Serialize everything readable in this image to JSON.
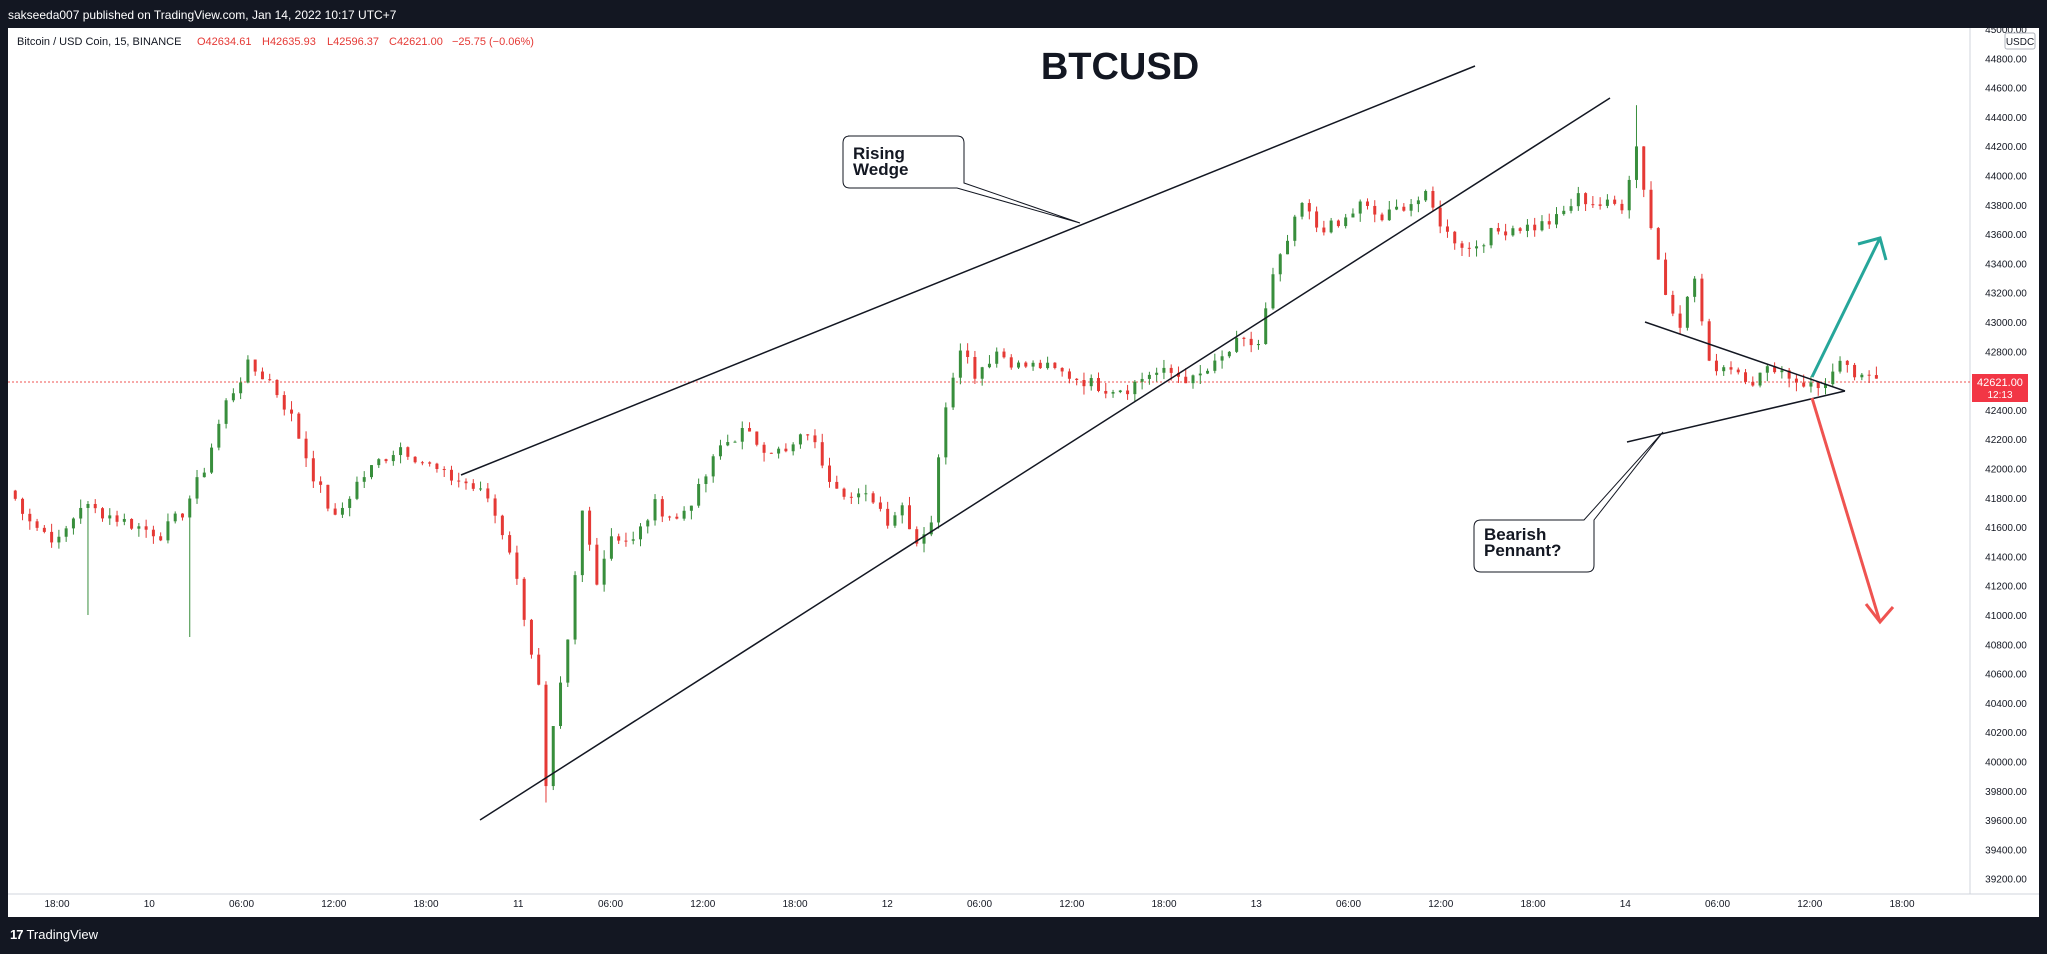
{
  "header": {
    "published_by": "sakseeda007 published on TradingView.com, Jan 14, 2022 10:17 UTC+7"
  },
  "brand": {
    "logo_glyph": "17",
    "name": "TradingView"
  },
  "symbol": {
    "name": "Bitcoin / USD Coin, 15, BINANCE",
    "open": "O42634.61",
    "high": "H42635.93",
    "low": "L42596.37",
    "close": "C42621.00",
    "change": "−25.75 (−0.06%)"
  },
  "price_scale": {
    "currency": "USDC",
    "current_price": "42621.00",
    "countdown": "12:13"
  },
  "colors": {
    "up": "#26a69a",
    "down": "#ef5350",
    "candle_up": "#388e3c",
    "candle_down": "#e53935",
    "arrow_up": "#26a69a",
    "arrow_down": "#ef5350"
  },
  "chart_data": {
    "type": "candlestick",
    "title": "BTCUSD",
    "x_axis": {
      "ticks": [
        "18:00",
        "10",
        "06:00",
        "12:00",
        "18:00",
        "11",
        "06:00",
        "12:00",
        "18:00",
        "12",
        "06:00",
        "12:00",
        "18:00",
        "13",
        "06:00",
        "12:00",
        "18:00",
        "14",
        "06:00",
        "12:00",
        "18:00"
      ]
    },
    "y_axis": {
      "ylim": [
        39200,
        45000
      ],
      "ticks": [
        "45000.00",
        "44800.00",
        "44600.00",
        "44400.00",
        "44200.00",
        "44000.00",
        "43800.00",
        "43600.00",
        "43400.00",
        "43200.00",
        "43000.00",
        "42800.00",
        "42600.00",
        "42400.00",
        "42200.00",
        "42000.00",
        "41800.00",
        "41600.00",
        "41400.00",
        "41200.00",
        "41000.00",
        "40800.00",
        "40600.00",
        "40400.00",
        "40200.00",
        "40000.00",
        "39800.00",
        "39600.00",
        "39400.00",
        "39200.00"
      ]
    },
    "price_path": [
      [
        0,
        41850
      ],
      [
        4,
        41600
      ],
      [
        7,
        41500
      ],
      [
        10,
        41750
      ],
      [
        14,
        41680
      ],
      [
        18,
        41600
      ],
      [
        21,
        41550
      ],
      [
        24,
        41700
      ],
      [
        27,
        42000
      ],
      [
        30,
        42450
      ],
      [
        33,
        42700
      ],
      [
        36,
        42600
      ],
      [
        39,
        42350
      ],
      [
        42,
        41950
      ],
      [
        45,
        41650
      ],
      [
        48,
        41900
      ],
      [
        51,
        42050
      ],
      [
        54,
        42150
      ],
      [
        57,
        42050
      ],
      [
        60,
        41950
      ],
      [
        63,
        41900
      ],
      [
        66,
        41800
      ],
      [
        69,
        41450
      ],
      [
        71,
        41000
      ],
      [
        73,
        40500
      ],
      [
        74,
        39800
      ],
      [
        75,
        40200
      ],
      [
        77,
        40800
      ],
      [
        79,
        41700
      ],
      [
        81,
        41250
      ],
      [
        83,
        41550
      ],
      [
        86,
        41500
      ],
      [
        89,
        41750
      ],
      [
        92,
        41650
      ],
      [
        95,
        41850
      ],
      [
        98,
        42150
      ],
      [
        101,
        42250
      ],
      [
        104,
        42150
      ],
      [
        107,
        42100
      ],
      [
        110,
        42250
      ],
      [
        113,
        41950
      ],
      [
        116,
        41800
      ],
      [
        119,
        41800
      ],
      [
        121,
        41650
      ],
      [
        123,
        41750
      ],
      [
        125,
        41500
      ],
      [
        127,
        41650
      ],
      [
        129,
        42450
      ],
      [
        131,
        42850
      ],
      [
        133,
        42650
      ],
      [
        136,
        42800
      ],
      [
        139,
        42700
      ],
      [
        142,
        42700
      ],
      [
        145,
        42650
      ],
      [
        148,
        42600
      ],
      [
        151,
        42550
      ],
      [
        154,
        42550
      ],
      [
        157,
        42650
      ],
      [
        160,
        42650
      ],
      [
        163,
        42600
      ],
      [
        166,
        42700
      ],
      [
        169,
        42850
      ],
      [
        172,
        42850
      ],
      [
        174,
        43300
      ],
      [
        176,
        43550
      ],
      [
        178,
        43800
      ],
      [
        180,
        43650
      ],
      [
        183,
        43650
      ],
      [
        186,
        43800
      ],
      [
        189,
        43700
      ],
      [
        192,
        43800
      ],
      [
        195,
        43850
      ],
      [
        198,
        43600
      ],
      [
        201,
        43500
      ],
      [
        204,
        43600
      ],
      [
        207,
        43650
      ],
      [
        210,
        43650
      ],
      [
        213,
        43700
      ],
      [
        216,
        43850
      ],
      [
        219,
        43800
      ],
      [
        222,
        43800
      ],
      [
        224,
        44200
      ],
      [
        226,
        43650
      ],
      [
        228,
        43200
      ],
      [
        230,
        43000
      ],
      [
        232,
        43300
      ],
      [
        234,
        42700
      ],
      [
        237,
        42700
      ],
      [
        240,
        42600
      ],
      [
        243,
        42700
      ],
      [
        246,
        42600
      ],
      [
        249,
        42550
      ],
      [
        252,
        42700
      ],
      [
        255,
        42600
      ],
      [
        257,
        42621
      ]
    ],
    "annotations": [
      "Rising\nWedge",
      "Bearish\nPennant?"
    ]
  }
}
